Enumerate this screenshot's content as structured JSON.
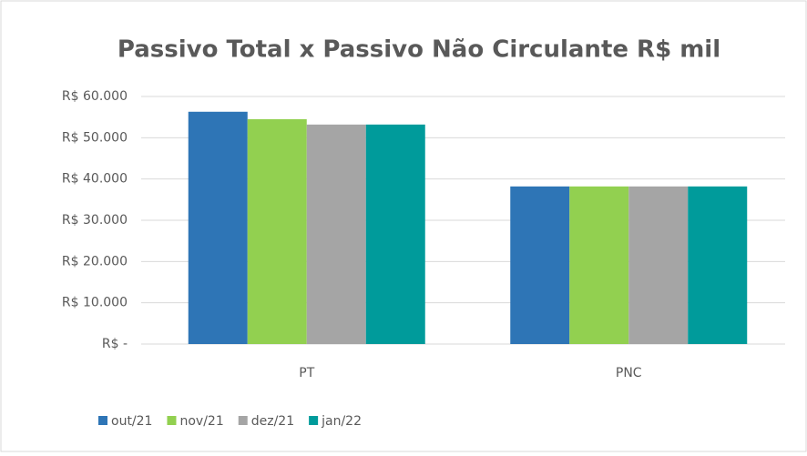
{
  "chart_data": {
    "type": "bar",
    "title": "Passivo Total x Passivo Não Circulante  R$ mil",
    "categories": [
      "PT",
      "PNC"
    ],
    "series": [
      {
        "name": "out/21",
        "color": "#2e75b6",
        "values": [
          56300,
          38200
        ]
      },
      {
        "name": "nov/21",
        "color": "#92d050",
        "values": [
          54500,
          38200
        ]
      },
      {
        "name": "dez/21",
        "color": "#a5a5a5",
        "values": [
          53200,
          38200
        ]
      },
      {
        "name": "jan/22",
        "color": "#009b9b",
        "values": [
          53200,
          38200
        ]
      }
    ],
    "ylim": [
      0,
      60000
    ],
    "yticks": [
      {
        "value": 0,
        "label": "R$ -"
      },
      {
        "value": 10000,
        "label": "R$ 10.000"
      },
      {
        "value": 20000,
        "label": "R$ 20.000"
      },
      {
        "value": 30000,
        "label": "R$ 30.000"
      },
      {
        "value": 40000,
        "label": "R$ 40.000"
      },
      {
        "value": 50000,
        "label": "R$ 50.000"
      },
      {
        "value": 60000,
        "label": "R$ 60.000"
      }
    ],
    "grid": true,
    "legend": "bottom-left"
  }
}
